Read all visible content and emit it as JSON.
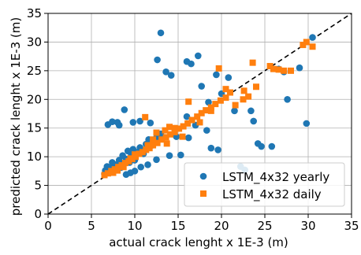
{
  "chart_data": {
    "type": "scatter",
    "title": "",
    "xlabel": "actual crack lenght x 1E-3 (m)",
    "ylabel": "predicted crack lenght x 1E-3 (m)",
    "xlim": [
      0,
      35
    ],
    "ylim": [
      0,
      35
    ],
    "xticks": [
      0,
      5,
      10,
      15,
      20,
      25,
      30,
      35
    ],
    "yticks": [
      0,
      5,
      10,
      15,
      20,
      25,
      30,
      35
    ],
    "grid": true,
    "legend_position": "lower-right",
    "reference_line": {
      "style": "dashed",
      "color": "#000000",
      "from": [
        0,
        0
      ],
      "to": [
        35,
        35
      ]
    },
    "series": [
      {
        "name": "LSTM_4x32 yearly",
        "marker": "circle",
        "color": "#1f77b4",
        "points": [
          [
            6.5,
            7.0
          ],
          [
            6.6,
            7.6
          ],
          [
            6.8,
            8.3
          ],
          [
            7.0,
            7.2
          ],
          [
            7.2,
            8.0
          ],
          [
            7.4,
            9.0
          ],
          [
            7.6,
            7.6
          ],
          [
            7.8,
            8.6
          ],
          [
            8.0,
            7.7
          ],
          [
            8.2,
            9.4
          ],
          [
            8.4,
            8.1
          ],
          [
            8.6,
            10.2
          ],
          [
            8.8,
            8.9
          ],
          [
            9.0,
            9.6
          ],
          [
            9.2,
            11.0
          ],
          [
            9.4,
            9.0
          ],
          [
            9.6,
            10.3
          ],
          [
            9.8,
            11.3
          ],
          [
            10.0,
            9.4
          ],
          [
            10.3,
            10.8
          ],
          [
            10.6,
            11.6
          ],
          [
            11.0,
            10.5
          ],
          [
            11.3,
            12.2
          ],
          [
            11.6,
            13.0
          ],
          [
            12.0,
            12.0
          ],
          [
            12.5,
            13.3
          ],
          [
            13.0,
            14.0
          ],
          [
            6.9,
            15.6
          ],
          [
            7.4,
            16.1
          ],
          [
            8.0,
            16.0
          ],
          [
            8.2,
            15.5
          ],
          [
            8.8,
            18.2
          ],
          [
            9.8,
            16.0
          ],
          [
            10.6,
            16.2
          ],
          [
            11.8,
            15.9
          ],
          [
            13.0,
            31.6
          ],
          [
            12.6,
            26.9
          ],
          [
            13.6,
            24.8
          ],
          [
            14.2,
            24.2
          ],
          [
            16.0,
            26.6
          ],
          [
            16.5,
            26.2
          ],
          [
            17.3,
            27.6
          ],
          [
            17.7,
            22.3
          ],
          [
            19.4,
            24.3
          ],
          [
            20.8,
            23.8
          ],
          [
            9.0,
            6.9
          ],
          [
            9.5,
            7.2
          ],
          [
            10.0,
            7.5
          ],
          [
            10.7,
            8.2
          ],
          [
            11.5,
            8.6
          ],
          [
            12.5,
            9.5
          ],
          [
            14.0,
            10.2
          ],
          [
            15.3,
            10.3
          ],
          [
            14.8,
            13.5
          ],
          [
            16.2,
            13.3
          ],
          [
            18.3,
            14.6
          ],
          [
            18.8,
            11.5
          ],
          [
            19.6,
            11.2
          ],
          [
            22.2,
            8.3
          ],
          [
            23.4,
            18.0
          ],
          [
            23.7,
            16.2
          ],
          [
            24.2,
            12.3
          ],
          [
            24.6,
            11.8
          ],
          [
            25.8,
            11.8
          ],
          [
            26.6,
            25.3
          ],
          [
            27.2,
            24.8
          ],
          [
            27.6,
            20.0
          ],
          [
            29.0,
            25.5
          ],
          [
            29.8,
            15.8
          ],
          [
            30.5,
            30.8
          ],
          [
            21.5,
            18.0
          ],
          [
            20.0,
            21.0
          ],
          [
            18.5,
            19.5
          ],
          [
            16.0,
            17.0
          ],
          [
            17.0,
            15.5
          ],
          [
            22.7,
            7.7
          ]
        ]
      },
      {
        "name": "LSTM_4x32 daily",
        "marker": "square",
        "color": "#ff7f0e",
        "points": [
          [
            6.5,
            6.8
          ],
          [
            6.9,
            7.1
          ],
          [
            7.3,
            7.5
          ],
          [
            7.7,
            7.8
          ],
          [
            8.1,
            8.2
          ],
          [
            8.5,
            8.5
          ],
          [
            8.9,
            8.9
          ],
          [
            9.3,
            9.2
          ],
          [
            9.7,
            9.6
          ],
          [
            10.1,
            10.0
          ],
          [
            10.5,
            10.5
          ],
          [
            10.9,
            10.8
          ],
          [
            11.3,
            11.2
          ],
          [
            11.7,
            11.5
          ],
          [
            12.1,
            12.0
          ],
          [
            12.6,
            12.4
          ],
          [
            13.1,
            13.0
          ],
          [
            13.6,
            13.4
          ],
          [
            14.1,
            13.9
          ],
          [
            14.6,
            14.3
          ],
          [
            15.1,
            14.9
          ],
          [
            15.6,
            15.3
          ],
          [
            16.1,
            15.8
          ],
          [
            16.6,
            16.4
          ],
          [
            17.2,
            17.0
          ],
          [
            17.7,
            17.6
          ],
          [
            18.2,
            18.1
          ],
          [
            18.8,
            18.6
          ],
          [
            19.3,
            19.2
          ],
          [
            19.9,
            19.8
          ],
          [
            20.5,
            20.3
          ],
          [
            7.5,
            7.2
          ],
          [
            8.0,
            7.6
          ],
          [
            8.7,
            8.2
          ],
          [
            9.5,
            9.7
          ],
          [
            10.0,
            10.4
          ],
          [
            11.5,
            12.0
          ],
          [
            12.5,
            14.2
          ],
          [
            13.5,
            14.6
          ],
          [
            14.0,
            15.2
          ],
          [
            14.6,
            15.0
          ],
          [
            16.2,
            19.6
          ],
          [
            19.7,
            25.4
          ],
          [
            20.5,
            21.8
          ],
          [
            21.6,
            19.0
          ],
          [
            22.5,
            20.0
          ],
          [
            22.6,
            21.5
          ],
          [
            23.1,
            20.5
          ],
          [
            23.6,
            26.4
          ],
          [
            24.0,
            22.2
          ],
          [
            25.6,
            25.8
          ],
          [
            26.0,
            25.3
          ],
          [
            26.6,
            25.2
          ],
          [
            27.2,
            25.0
          ],
          [
            28.0,
            25.0
          ],
          [
            29.4,
            29.5
          ],
          [
            29.8,
            30.0
          ],
          [
            30.5,
            29.2
          ],
          [
            11.2,
            16.9
          ],
          [
            12.1,
            13.0
          ],
          [
            13.7,
            12.3
          ],
          [
            15.5,
            13.5
          ],
          [
            17.5,
            16.0
          ],
          [
            18.8,
            18.0
          ],
          [
            21.0,
            21.2
          ]
        ]
      }
    ]
  }
}
